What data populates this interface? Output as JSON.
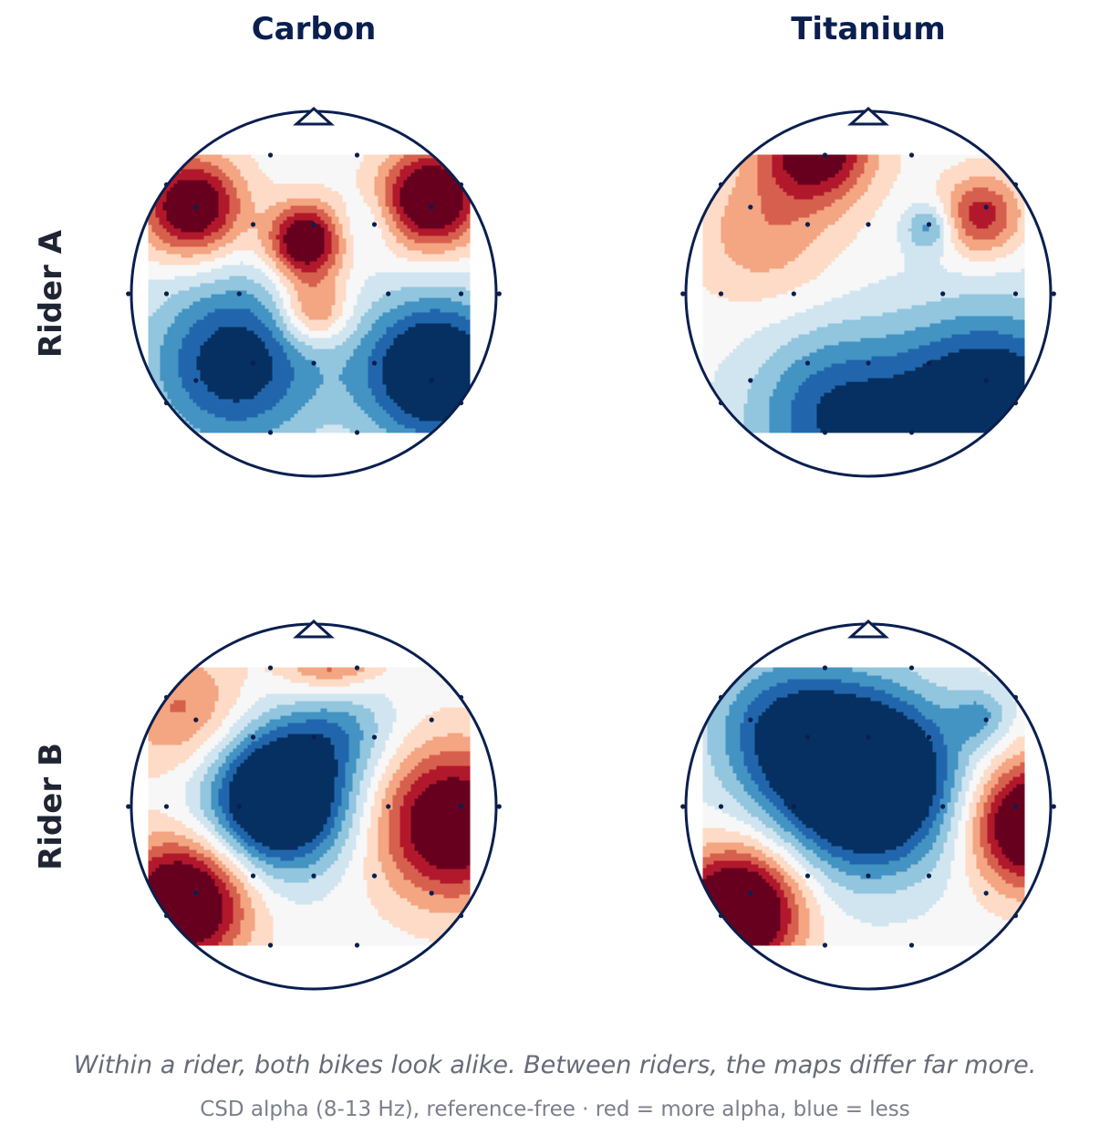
{
  "chart_data": {
    "type": "heatmap",
    "columns": [
      "Carbon",
      "Titanium"
    ],
    "rows": [
      "Rider A",
      "Rider B"
    ],
    "caption": "Within a rider, both bikes look alike.  Between riders, the maps differ far more.",
    "subcaption": "CSD alpha (8-13 Hz), reference-free · red = more alpha, blue = less",
    "color_scale": {
      "low_color": "#053061",
      "mid_color": "#f7f7f7",
      "high_color": "#67001f",
      "stops": [
        "#053061",
        "#2166ac",
        "#4393c3",
        "#92c5de",
        "#d1e5f0",
        "#f7f7f7",
        "#fddbc7",
        "#f4a582",
        "#d6604d",
        "#b2182b",
        "#67001f"
      ],
      "levels": 11,
      "range": [
        -1,
        1
      ]
    },
    "head": {
      "outline_color": "#0a1f4f",
      "sensor_color": "#0a1f4f"
    },
    "panels": [
      {
        "rider": "Rider A",
        "bike": "Carbon",
        "sources": [
          {
            "x": -0.7,
            "y": 0.5,
            "amp": 1.15,
            "sigma": 0.2
          },
          {
            "x": -0.05,
            "y": 0.3,
            "amp": 1.2,
            "sigma": 0.15
          },
          {
            "x": 0.0,
            "y": -0.1,
            "amp": 0.7,
            "sigma": 0.14
          },
          {
            "x": 0.68,
            "y": 0.55,
            "amp": 1.25,
            "sigma": 0.2
          },
          {
            "x": 0.7,
            "y": -0.45,
            "amp": -1.3,
            "sigma": 0.3
          },
          {
            "x": -0.45,
            "y": -0.4,
            "amp": -1.0,
            "sigma": 0.35
          },
          {
            "x": 0.3,
            "y": 0.4,
            "amp": -0.25,
            "sigma": 0.12
          }
        ]
      },
      {
        "rider": "Rider A",
        "bike": "Titanium",
        "sources": [
          {
            "x": -0.3,
            "y": 0.85,
            "amp": 1.1,
            "sigma": 0.22
          },
          {
            "x": 0.65,
            "y": 0.45,
            "amp": 0.75,
            "sigma": 0.16
          },
          {
            "x": 0.35,
            "y": 0.38,
            "amp": -0.55,
            "sigma": 0.1
          },
          {
            "x": -0.6,
            "y": 0.35,
            "amp": 0.4,
            "sigma": 0.28
          },
          {
            "x": 0.7,
            "y": -0.7,
            "amp": -1.3,
            "sigma": 0.4
          },
          {
            "x": -0.2,
            "y": -0.7,
            "amp": -0.8,
            "sigma": 0.35
          }
        ]
      },
      {
        "rider": "Rider B",
        "bike": "Carbon",
        "sources": [
          {
            "x": -0.2,
            "y": 0.05,
            "amp": -1.6,
            "sigma": 0.28
          },
          {
            "x": 0.15,
            "y": 0.5,
            "amp": -0.5,
            "sigma": 0.22
          },
          {
            "x": -0.75,
            "y": -0.55,
            "amp": 1.35,
            "sigma": 0.25
          },
          {
            "x": 0.8,
            "y": -0.1,
            "amp": 1.2,
            "sigma": 0.3
          },
          {
            "x": 0.1,
            "y": 0.9,
            "amp": 0.8,
            "sigma": 0.2
          },
          {
            "x": -0.75,
            "y": 0.55,
            "amp": 0.5,
            "sigma": 0.25
          }
        ]
      },
      {
        "rider": "Rider B",
        "bike": "Titanium",
        "sources": [
          {
            "x": 0.0,
            "y": 0.15,
            "amp": -1.7,
            "sigma": 0.35
          },
          {
            "x": -0.5,
            "y": 0.45,
            "amp": -0.7,
            "sigma": 0.3
          },
          {
            "x": -0.75,
            "y": -0.6,
            "amp": 1.5,
            "sigma": 0.24
          },
          {
            "x": 0.95,
            "y": -0.1,
            "amp": 1.4,
            "sigma": 0.25
          },
          {
            "x": 0.65,
            "y": 0.52,
            "amp": -0.4,
            "sigma": 0.12
          }
        ]
      }
    ],
    "sensors": [
      [
        -0.25,
        0.8
      ],
      [
        0.25,
        0.8
      ],
      [
        -0.68,
        0.5
      ],
      [
        -0.35,
        0.4
      ],
      [
        0.0,
        0.4
      ],
      [
        0.35,
        0.4
      ],
      [
        0.68,
        0.5
      ],
      [
        -0.85,
        0.0
      ],
      [
        -0.43,
        0.0
      ],
      [
        0.43,
        0.0
      ],
      [
        0.85,
        0.0
      ],
      [
        -0.68,
        -0.5
      ],
      [
        -0.35,
        -0.4
      ],
      [
        0.0,
        -0.4
      ],
      [
        0.35,
        -0.4
      ],
      [
        0.68,
        -0.5
      ],
      [
        -0.25,
        -0.8
      ],
      [
        0.25,
        -0.8
      ],
      [
        -0.85,
        0.63
      ],
      [
        0.85,
        0.63
      ],
      [
        -1.07,
        0.0
      ],
      [
        1.07,
        0.0
      ],
      [
        -0.85,
        -0.63
      ],
      [
        0.85,
        -0.63
      ]
    ]
  }
}
